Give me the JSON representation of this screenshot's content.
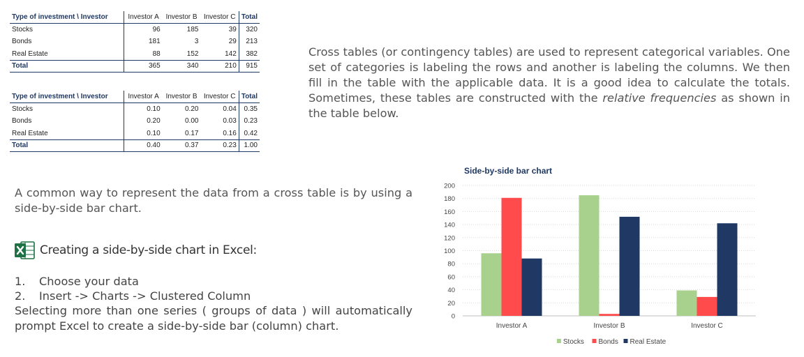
{
  "table_counts": {
    "header": [
      "Type of investment \\ Investor",
      "Investor A",
      "Investor B",
      "Investor C",
      "Total"
    ],
    "rows": [
      [
        "Stocks",
        "96",
        "185",
        "39",
        "320"
      ],
      [
        "Bonds",
        "181",
        "3",
        "29",
        "213"
      ],
      [
        "Real Estate",
        "88",
        "152",
        "142",
        "382"
      ]
    ],
    "total": [
      "Total",
      "365",
      "340",
      "210",
      "915"
    ]
  },
  "table_freq": {
    "header": [
      "Type of investment \\ Investor",
      "Investor A",
      "Investor B",
      "Investor C",
      "Total"
    ],
    "rows": [
      [
        "Stocks",
        "0.10",
        "0.20",
        "0.04",
        "0.35"
      ],
      [
        "Bonds",
        "0.20",
        "0.00",
        "0.03",
        "0.23"
      ],
      [
        "Real Estate",
        "0.10",
        "0.17",
        "0.16",
        "0.42"
      ]
    ],
    "total": [
      "Total",
      "0.40",
      "0.37",
      "0.23",
      "1.00"
    ]
  },
  "intro": {
    "before": "Cross tables (or contingency tables) are used to represent categorical variables. One set of categories is labeling the rows and another is labeling the columns. We then fill in the table with the applicable data. It is a good idea to calculate the totals. Sometimes, these tables are constructed with the ",
    "emphasis": "relative frequencies",
    "after": " as shown in the table below."
  },
  "bar_paragraph": "A common way to represent the data from a cross table is by using a side-by-side bar chart.",
  "excel": {
    "heading": "Creating a side-by-side chart in Excel:",
    "icon": "excel-icon",
    "steps": [
      {
        "number": "1.",
        "text": "Choose your data"
      },
      {
        "number": "2.",
        "text": "Insert -> Charts -> Clustered Column"
      }
    ],
    "tail": "Selecting more than one series ( groups of data ) will automatically prompt Excel to create a side-by-side bar (column) chart."
  },
  "chart_data": {
    "type": "bar",
    "title": "Side-by-side bar chart",
    "categories": [
      "Investor A",
      "Investor B",
      "Investor C"
    ],
    "series": [
      {
        "name": "Stocks",
        "values": [
          96,
          185,
          39
        ],
        "color": "#a9d18e"
      },
      {
        "name": "Bonds",
        "values": [
          181,
          3,
          29
        ],
        "color": "#ff4b4b"
      },
      {
        "name": "Real Estate",
        "values": [
          88,
          152,
          142
        ],
        "color": "#1f3864"
      }
    ],
    "ylim": [
      0,
      200
    ],
    "yticks": [
      0,
      20,
      40,
      60,
      80,
      100,
      120,
      140,
      160,
      180,
      200
    ],
    "grid": true,
    "legend_position": "bottom",
    "xlabel": "",
    "ylabel": ""
  }
}
